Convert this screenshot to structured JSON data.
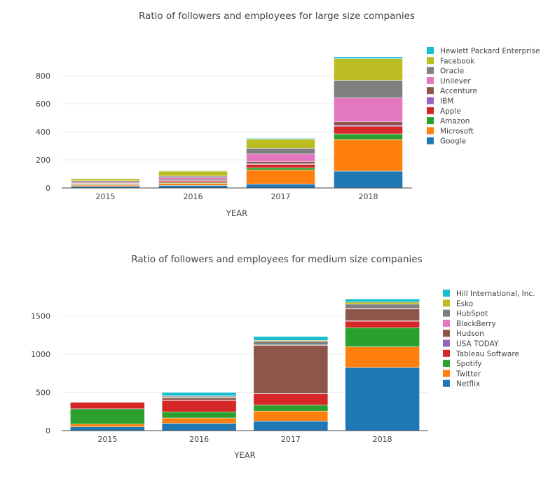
{
  "colors": {
    "Google": "#1f77b4",
    "Microsoft": "#ff7f0e",
    "Amazon": "#2ca02c",
    "Apple": "#d62728",
    "IBM": "#9467bd",
    "Accenture": "#8c564b",
    "Unilever": "#e377c2",
    "Oracle": "#7f7f7f",
    "Facebook": "#bcbd22",
    "Hewlett Packard Enterprise": "#17becf",
    "Netflix": "#1f77b4",
    "Twitter": "#ff7f0e",
    "Spotify": "#2ca02c",
    "Tableau Software": "#d62728",
    "USA TODAY": "#9467bd",
    "Hudson": "#8c564b",
    "BlackBerry": "#e377c2",
    "HubSpot": "#7f7f7f",
    "Esko": "#bcbd22",
    "Hill International, Inc.": "#17becf"
  },
  "chart_data": [
    {
      "type": "bar",
      "stacked": true,
      "title": "Ratio of followers and employees for large size companies",
      "xlabel": "YEAR",
      "ylabel": "",
      "categories": [
        "2015",
        "2016",
        "2017",
        "2018"
      ],
      "ylim": [
        0,
        950
      ],
      "yticks": [
        0,
        200,
        400,
        600,
        800
      ],
      "legend_position": "right",
      "series": [
        {
          "name": "Google",
          "values": [
            12,
            18,
            28,
            120
          ]
        },
        {
          "name": "Microsoft",
          "values": [
            8,
            15,
            100,
            225
          ]
        },
        {
          "name": "Amazon",
          "values": [
            5,
            6,
            15,
            40
          ]
        },
        {
          "name": "Apple",
          "values": [
            5,
            10,
            25,
            55
          ]
        },
        {
          "name": "IBM",
          "values": [
            3,
            4,
            5,
            7
          ]
        },
        {
          "name": "Accenture",
          "values": [
            6,
            10,
            15,
            25
          ]
        },
        {
          "name": "Unilever",
          "values": [
            5,
            12,
            55,
            170
          ]
        },
        {
          "name": "Oracle",
          "values": [
            8,
            10,
            40,
            125
          ]
        },
        {
          "name": "Facebook",
          "values": [
            15,
            35,
            65,
            155
          ]
        },
        {
          "name": "Hewlett Packard Enterprise",
          "values": [
            2,
            3,
            5,
            13
          ]
        }
      ]
    },
    {
      "type": "bar",
      "stacked": true,
      "title": "Ratio of followers and employees for medium size companies",
      "xlabel": "YEAR",
      "ylabel": "",
      "categories": [
        "2015",
        "2016",
        "2017",
        "2018"
      ],
      "ylim": [
        0,
        1760
      ],
      "yticks": [
        0,
        500,
        1000,
        1500
      ],
      "legend_position": "right",
      "series": [
        {
          "name": "Netflix",
          "values": [
            50,
            95,
            125,
            825
          ]
        },
        {
          "name": "Twitter",
          "values": [
            35,
            70,
            130,
            270
          ]
        },
        {
          "name": "Spotify",
          "values": [
            200,
            80,
            80,
            250
          ]
        },
        {
          "name": "Tableau Software",
          "values": [
            85,
            150,
            145,
            85
          ]
        },
        {
          "name": "USA TODAY",
          "values": [
            0,
            5,
            5,
            5
          ]
        },
        {
          "name": "Hudson",
          "values": [
            0,
            30,
            630,
            160
          ]
        },
        {
          "name": "BlackBerry",
          "values": [
            0,
            5,
            5,
            5
          ]
        },
        {
          "name": "HubSpot",
          "values": [
            0,
            15,
            50,
            55
          ]
        },
        {
          "name": "Esko",
          "values": [
            0,
            5,
            10,
            25
          ]
        },
        {
          "name": "Hill International, Inc.",
          "values": [
            0,
            45,
            50,
            40
          ]
        }
      ]
    }
  ]
}
